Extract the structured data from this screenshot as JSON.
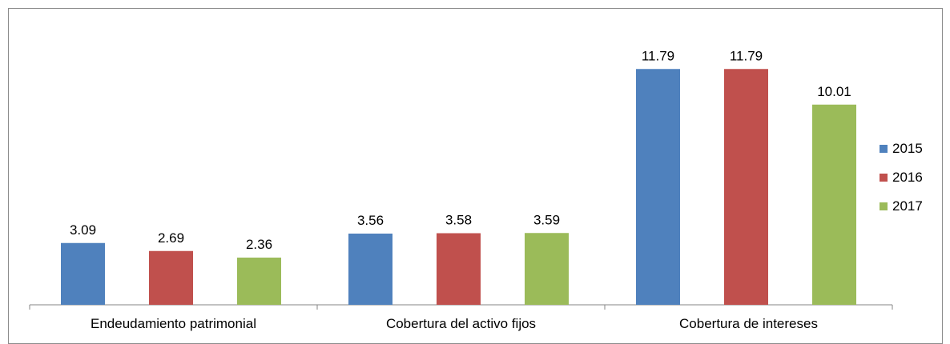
{
  "chart_data": {
    "type": "bar",
    "categories": [
      "Endeudamiento patrimonial",
      "Cobertura del activo fijos",
      "Cobertura de intereses"
    ],
    "series": [
      {
        "name": "2015",
        "color": "#4F81BD",
        "values": [
          3.09,
          3.56,
          11.79
        ]
      },
      {
        "name": "2016",
        "color": "#C0504D",
        "values": [
          2.69,
          3.58,
          11.79
        ]
      },
      {
        "name": "2017",
        "color": "#9BBB59",
        "values": [
          2.36,
          3.59,
          10.01
        ]
      }
    ],
    "data_labels": [
      [
        "3.09",
        "3.56",
        "11.79"
      ],
      [
        "2.69",
        "3.58",
        "11.79"
      ],
      [
        "2.36",
        "3.59",
        "10.01"
      ]
    ],
    "ylim": [
      0,
      13.5
    ],
    "grid": false,
    "legend_position": "right"
  }
}
